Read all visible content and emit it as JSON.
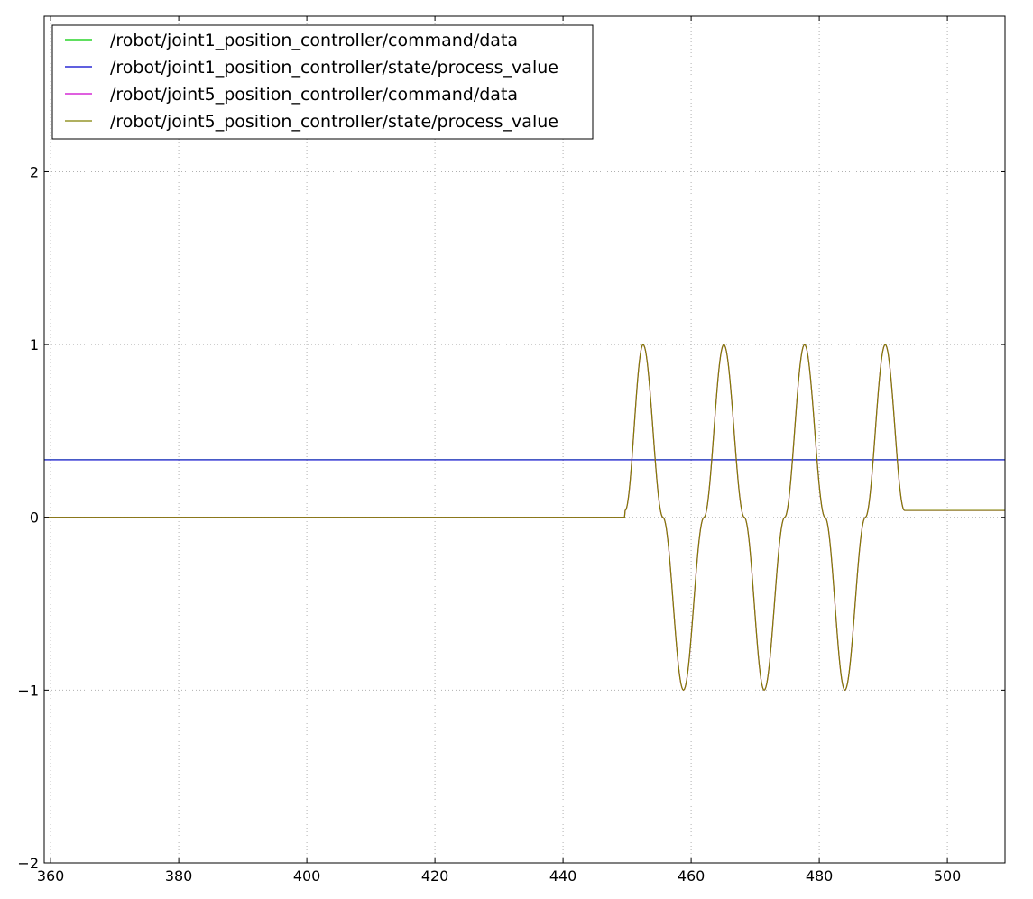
{
  "chart_data": {
    "type": "line",
    "title": "",
    "xlabel": "",
    "ylabel": "",
    "xlim": [
      359,
      509
    ],
    "ylim": [
      -2,
      2.9
    ],
    "xticks": [
      360,
      380,
      400,
      420,
      440,
      460,
      480,
      500
    ],
    "yticks": [
      -2,
      -1,
      0,
      1,
      2
    ],
    "ytick_labels": [
      "−2",
      "−1",
      "0",
      "1",
      "2"
    ],
    "grid": true,
    "legend_position": "upper-left",
    "series": [
      {
        "name": "/robot/joint1_position_controller/command/data",
        "color": "#00cc00",
        "points": [
          [
            359,
            0.333
          ],
          [
            509,
            0.333
          ]
        ]
      },
      {
        "name": "/robot/joint1_position_controller/state/process_value",
        "color": "#0000cc",
        "points": [
          [
            359,
            0.333
          ],
          [
            509,
            0.333
          ]
        ]
      },
      {
        "name": "/robot/joint5_position_controller/command/data",
        "color": "#cc00cc",
        "points": [
          [
            359,
            0.0
          ],
          [
            449.6,
            0.0
          ],
          [
            449.7,
            0.04
          ],
          [
            452.5,
            1.0
          ],
          [
            455.6,
            0.0
          ],
          [
            458.8,
            -1.0
          ],
          [
            462.0,
            0.0
          ],
          [
            465.1,
            1.0
          ],
          [
            468.3,
            0.0
          ],
          [
            471.4,
            -1.0
          ],
          [
            474.6,
            0.0
          ],
          [
            477.7,
            1.0
          ],
          [
            480.9,
            0.0
          ],
          [
            484.0,
            -1.0
          ],
          [
            487.2,
            0.0
          ],
          [
            490.3,
            1.0
          ],
          [
            493.3,
            0.04
          ],
          [
            509,
            0.04
          ]
        ]
      },
      {
        "name": "/robot/joint5_position_controller/state/process_value",
        "color": "#808000",
        "points": [
          [
            359,
            0.0
          ],
          [
            449.6,
            0.0
          ],
          [
            449.7,
            0.04
          ],
          [
            452.5,
            1.0
          ],
          [
            455.6,
            0.0
          ],
          [
            458.8,
            -1.0
          ],
          [
            462.0,
            0.0
          ],
          [
            465.1,
            1.0
          ],
          [
            468.3,
            0.0
          ],
          [
            471.4,
            -1.0
          ],
          [
            474.6,
            0.0
          ],
          [
            477.7,
            1.0
          ],
          [
            480.9,
            0.0
          ],
          [
            484.0,
            -1.0
          ],
          [
            487.2,
            0.0
          ],
          [
            490.3,
            1.0
          ],
          [
            493.3,
            0.04
          ],
          [
            509,
            0.04
          ]
        ]
      }
    ]
  }
}
